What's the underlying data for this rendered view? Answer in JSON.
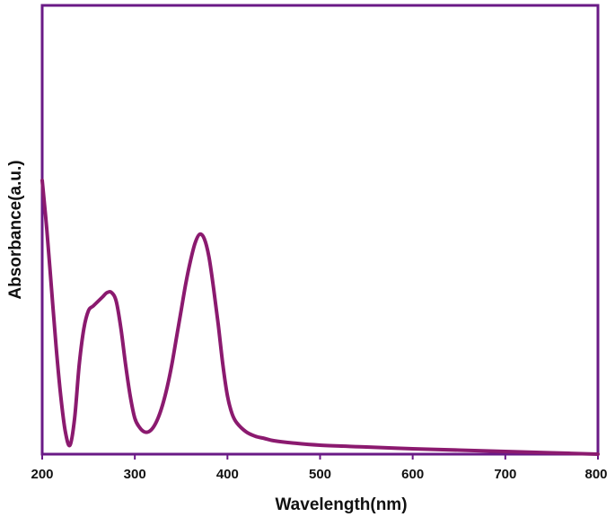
{
  "chart_data": {
    "type": "line",
    "title": "",
    "xlabel": "Wavelength(nm)",
    "ylabel": "Absorbance(a.u.)",
    "xlim": [
      200,
      800
    ],
    "ylim": [
      0,
      1
    ],
    "xticks": [
      "200",
      "300",
      "400",
      "500",
      "600",
      "700",
      "800"
    ],
    "yticks_visible": false,
    "grid": false,
    "legend": "none",
    "colors": {
      "frame": "#6a1a86",
      "series": "#8b1a6f"
    },
    "series": [
      {
        "x": [
          200,
          205,
          210,
          215,
          220,
          225,
          230,
          235,
          240,
          245,
          250,
          255,
          260,
          265,
          270,
          275,
          280,
          285,
          290,
          295,
          300,
          305,
          310,
          315,
          320,
          325,
          330,
          335,
          340,
          345,
          350,
          355,
          360,
          365,
          370,
          375,
          380,
          385,
          390,
          395,
          400,
          405,
          410,
          420,
          430,
          440,
          450,
          470,
          500,
          550,
          600,
          650,
          700,
          750,
          800
        ],
        "y": [
          0.61,
          0.5,
          0.37,
          0.24,
          0.13,
          0.05,
          0.02,
          0.08,
          0.2,
          0.28,
          0.32,
          0.33,
          0.34,
          0.35,
          0.36,
          0.36,
          0.34,
          0.28,
          0.2,
          0.13,
          0.08,
          0.06,
          0.05,
          0.05,
          0.06,
          0.08,
          0.11,
          0.15,
          0.2,
          0.26,
          0.32,
          0.38,
          0.43,
          0.47,
          0.49,
          0.48,
          0.44,
          0.37,
          0.29,
          0.2,
          0.13,
          0.09,
          0.07,
          0.05,
          0.04,
          0.035,
          0.03,
          0.025,
          0.02,
          0.016,
          0.012,
          0.009,
          0.006,
          0.003,
          0.0
        ]
      }
    ]
  }
}
